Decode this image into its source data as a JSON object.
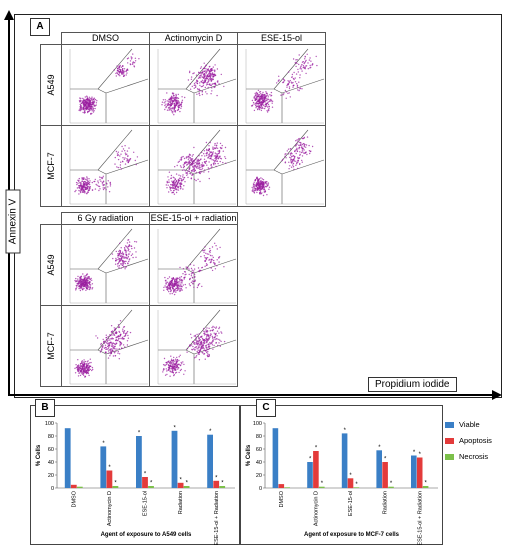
{
  "panel_a": {
    "label": "A",
    "y_axis_label": "Annexin V",
    "x_axis_label": "Propidium iodide",
    "top_columns": [
      "DMSO",
      "Actinomycin D",
      "ESE-15-ol"
    ],
    "bottom_columns": [
      "6 Gy radiation",
      "ESE-15-ol + radiation"
    ],
    "rows": [
      "A549",
      "MCF-7"
    ]
  },
  "colors": {
    "viable": "#3a7fc6",
    "apoptosis": "#e33b3b",
    "necrosis": "#7cc04a",
    "dots": "#9b1fa0"
  },
  "chart_data": [
    {
      "type": "bar",
      "panel": "B",
      "categories": [
        "DMSO",
        "Actinomycin D",
        "ESE-15-ol",
        "Radiation",
        "ESE-15-ol + Radiation"
      ],
      "series": [
        {
          "name": "Viable",
          "values": [
            92,
            64,
            80,
            88,
            82
          ]
        },
        {
          "name": "Apoptosis",
          "values": [
            5,
            27,
            17,
            8,
            11
          ]
        },
        {
          "name": "Necrosis",
          "values": [
            2,
            3,
            3,
            3,
            3
          ]
        }
      ],
      "significance": [
        "",
        "* * *",
        "* *",
        "* *",
        "* *"
      ],
      "ylabel": "% Cells",
      "xlabel": "Agent of exposure to A549 cells",
      "ylim": [
        0,
        100
      ],
      "yticks": [
        0,
        20,
        40,
        60,
        80,
        100
      ]
    },
    {
      "type": "bar",
      "panel": "C",
      "categories": [
        "DMSO",
        "Actinomycin D",
        "ESE-15-ol",
        "Radiation",
        "ESE-15-ol + Radiation"
      ],
      "series": [
        {
          "name": "Viable",
          "values": [
            92,
            40,
            84,
            58,
            50
          ]
        },
        {
          "name": "Apoptosis",
          "values": [
            6,
            57,
            15,
            40,
            47
          ]
        },
        {
          "name": "Necrosis",
          "values": [
            1,
            2,
            1,
            2,
            3
          ]
        }
      ],
      "significance": [
        "",
        "* *",
        "* *",
        "* * *",
        "* * *"
      ],
      "ylabel": "% Cells",
      "xlabel": "Agent of exposure to MCF-7 cells",
      "ylim": [
        0,
        100
      ],
      "yticks": [
        0,
        20,
        40,
        60,
        80,
        100
      ]
    }
  ],
  "legend": [
    "Viable",
    "Apoptosis",
    "Necrosis"
  ]
}
